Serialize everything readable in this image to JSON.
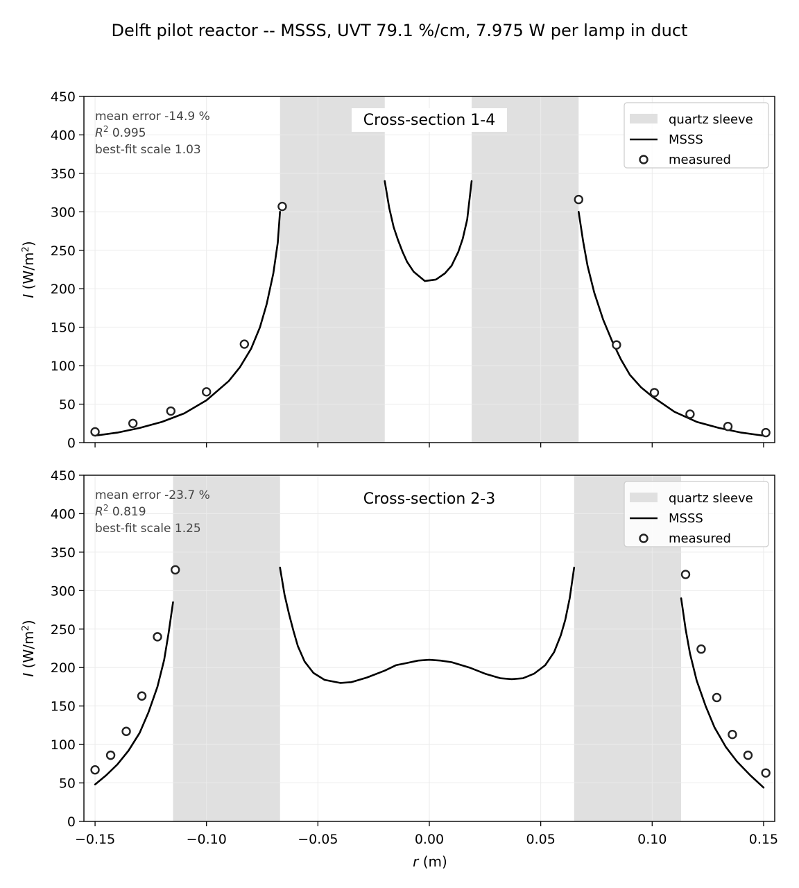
{
  "figure": {
    "title": "Delft pilot reactor -- MSSS, UVT 79.1 %/cm, 7.975 W per lamp in duct",
    "xlabel_var": "r",
    "xlabel_unit": " (m)",
    "ylabel_var": "I",
    "ylabel_unit_pre": " (W/m",
    "ylabel_unit_exp": "2",
    "ylabel_unit_post": ")"
  },
  "chart_data": [
    {
      "type": "line",
      "title": "Cross-section 1-4",
      "xlim": [
        -0.155,
        0.155
      ],
      "ylim": [
        0,
        450
      ],
      "xticks": [
        -0.15,
        -0.1,
        -0.05,
        0.0,
        0.05,
        0.1,
        0.15
      ],
      "xtick_labels": [
        "−0.15",
        "−0.10",
        "−0.05",
        "0.00",
        "0.05",
        "0.10",
        "0.15"
      ],
      "yticks": [
        0,
        50,
        100,
        150,
        200,
        250,
        300,
        350,
        400,
        450
      ],
      "ytick_labels": [
        "0",
        "50",
        "100",
        "150",
        "200",
        "250",
        "300",
        "350",
        "400",
        "450"
      ],
      "show_xtick_labels": false,
      "grid": true,
      "legend": {
        "placement": "top-right",
        "entries": [
          "quartz sleeve",
          "MSSS",
          "measured"
        ]
      },
      "stats": {
        "line1": "mean error -14.9 %",
        "r2_label": "R",
        "r2_exp": "2",
        "r2_value": " 0.995",
        "line3": "best-fit scale 1.03"
      },
      "sleeves": [
        [
          -0.067,
          -0.02
        ],
        [
          0.019,
          0.067
        ]
      ],
      "model_segments": [
        [
          [
            -0.15,
            9
          ],
          [
            -0.14,
            13
          ],
          [
            -0.13,
            19
          ],
          [
            -0.12,
            27
          ],
          [
            -0.11,
            38
          ],
          [
            -0.1,
            55
          ],
          [
            -0.09,
            80
          ],
          [
            -0.085,
            98
          ],
          [
            -0.08,
            122
          ],
          [
            -0.076,
            150
          ],
          [
            -0.073,
            180
          ],
          [
            -0.07,
            220
          ],
          [
            -0.068,
            260
          ],
          [
            -0.067,
            300
          ]
        ],
        [
          [
            -0.02,
            340
          ],
          [
            -0.018,
            305
          ],
          [
            -0.016,
            280
          ],
          [
            -0.014,
            263
          ],
          [
            -0.012,
            248
          ],
          [
            -0.01,
            235
          ],
          [
            -0.007,
            222
          ],
          [
            -0.002,
            210
          ],
          [
            0.003,
            212
          ],
          [
            0.007,
            220
          ],
          [
            0.01,
            230
          ],
          [
            0.013,
            248
          ],
          [
            0.015,
            265
          ],
          [
            0.017,
            290
          ],
          [
            0.019,
            340
          ]
        ],
        [
          [
            0.067,
            300
          ],
          [
            0.069,
            262
          ],
          [
            0.071,
            230
          ],
          [
            0.074,
            195
          ],
          [
            0.078,
            160
          ],
          [
            0.082,
            132
          ],
          [
            0.086,
            108
          ],
          [
            0.09,
            88
          ],
          [
            0.095,
            72
          ],
          [
            0.1,
            60
          ],
          [
            0.11,
            40
          ],
          [
            0.12,
            27
          ],
          [
            0.13,
            19
          ],
          [
            0.14,
            13
          ],
          [
            0.15,
            9
          ]
        ]
      ],
      "measured": {
        "x": [
          -0.15,
          -0.133,
          -0.116,
          -0.1,
          -0.083,
          -0.066,
          0.067,
          0.084,
          0.101,
          0.117,
          0.134,
          0.151
        ],
        "y": [
          14,
          25,
          41,
          66,
          128,
          307,
          316,
          127,
          65,
          37,
          21,
          13
        ]
      }
    },
    {
      "type": "line",
      "title": "Cross-section 2-3",
      "xlim": [
        -0.155,
        0.155
      ],
      "ylim": [
        0,
        450
      ],
      "xticks": [
        -0.15,
        -0.1,
        -0.05,
        0.0,
        0.05,
        0.1,
        0.15
      ],
      "xtick_labels": [
        "−0.15",
        "−0.10",
        "−0.05",
        "0.00",
        "0.05",
        "0.10",
        "0.15"
      ],
      "yticks": [
        0,
        50,
        100,
        150,
        200,
        250,
        300,
        350,
        400,
        450
      ],
      "ytick_labels": [
        "0",
        "50",
        "100",
        "150",
        "200",
        "250",
        "300",
        "350",
        "400",
        "450"
      ],
      "show_xtick_labels": true,
      "grid": true,
      "legend": {
        "placement": "top-right",
        "entries": [
          "quartz sleeve",
          "MSSS",
          "measured"
        ]
      },
      "stats": {
        "line1": "mean error -23.7 %",
        "r2_label": "R",
        "r2_exp": "2",
        "r2_value": " 0.819",
        "line3": "best-fit scale 1.25"
      },
      "sleeves": [
        [
          -0.115,
          -0.067
        ],
        [
          0.065,
          0.113
        ]
      ],
      "model_segments": [
        [
          [
            -0.15,
            48
          ],
          [
            -0.145,
            60
          ],
          [
            -0.14,
            74
          ],
          [
            -0.135,
            92
          ],
          [
            -0.13,
            115
          ],
          [
            -0.126,
            142
          ],
          [
            -0.122,
            175
          ],
          [
            -0.119,
            210
          ],
          [
            -0.117,
            245
          ],
          [
            -0.115,
            285
          ]
        ],
        [
          [
            -0.067,
            330
          ],
          [
            -0.065,
            295
          ],
          [
            -0.063,
            270
          ],
          [
            -0.061,
            248
          ],
          [
            -0.059,
            228
          ],
          [
            -0.056,
            208
          ],
          [
            -0.052,
            193
          ],
          [
            -0.047,
            184
          ],
          [
            -0.04,
            180
          ],
          [
            -0.035,
            181
          ],
          [
            -0.028,
            187
          ],
          [
            -0.02,
            196
          ],
          [
            -0.015,
            203
          ],
          [
            -0.01,
            206
          ],
          [
            -0.005,
            209
          ],
          [
            0.0,
            210
          ],
          [
            0.005,
            209
          ],
          [
            0.01,
            207
          ],
          [
            0.018,
            200
          ],
          [
            0.025,
            192
          ],
          [
            0.032,
            186
          ],
          [
            0.037,
            185
          ],
          [
            0.042,
            186
          ],
          [
            0.047,
            192
          ],
          [
            0.052,
            203
          ],
          [
            0.056,
            220
          ],
          [
            0.059,
            242
          ],
          [
            0.061,
            262
          ],
          [
            0.063,
            290
          ],
          [
            0.065,
            330
          ]
        ],
        [
          [
            0.113,
            290
          ],
          [
            0.115,
            250
          ],
          [
            0.117,
            218
          ],
          [
            0.12,
            183
          ],
          [
            0.124,
            150
          ],
          [
            0.128,
            122
          ],
          [
            0.133,
            97
          ],
          [
            0.138,
            78
          ],
          [
            0.144,
            60
          ],
          [
            0.15,
            44
          ]
        ]
      ],
      "measured": {
        "x": [
          -0.15,
          -0.143,
          -0.136,
          -0.129,
          -0.122,
          -0.114,
          0.115,
          0.122,
          0.129,
          0.136,
          0.143,
          0.151
        ],
        "y": [
          67,
          86,
          117,
          163,
          240,
          327,
          321,
          224,
          161,
          113,
          86,
          63
        ]
      }
    }
  ],
  "colors": {
    "sleeve": "#e0e0e0",
    "model": "#000000",
    "marker": "#222222",
    "grid": "#ebebeb",
    "stats": "#444444"
  }
}
